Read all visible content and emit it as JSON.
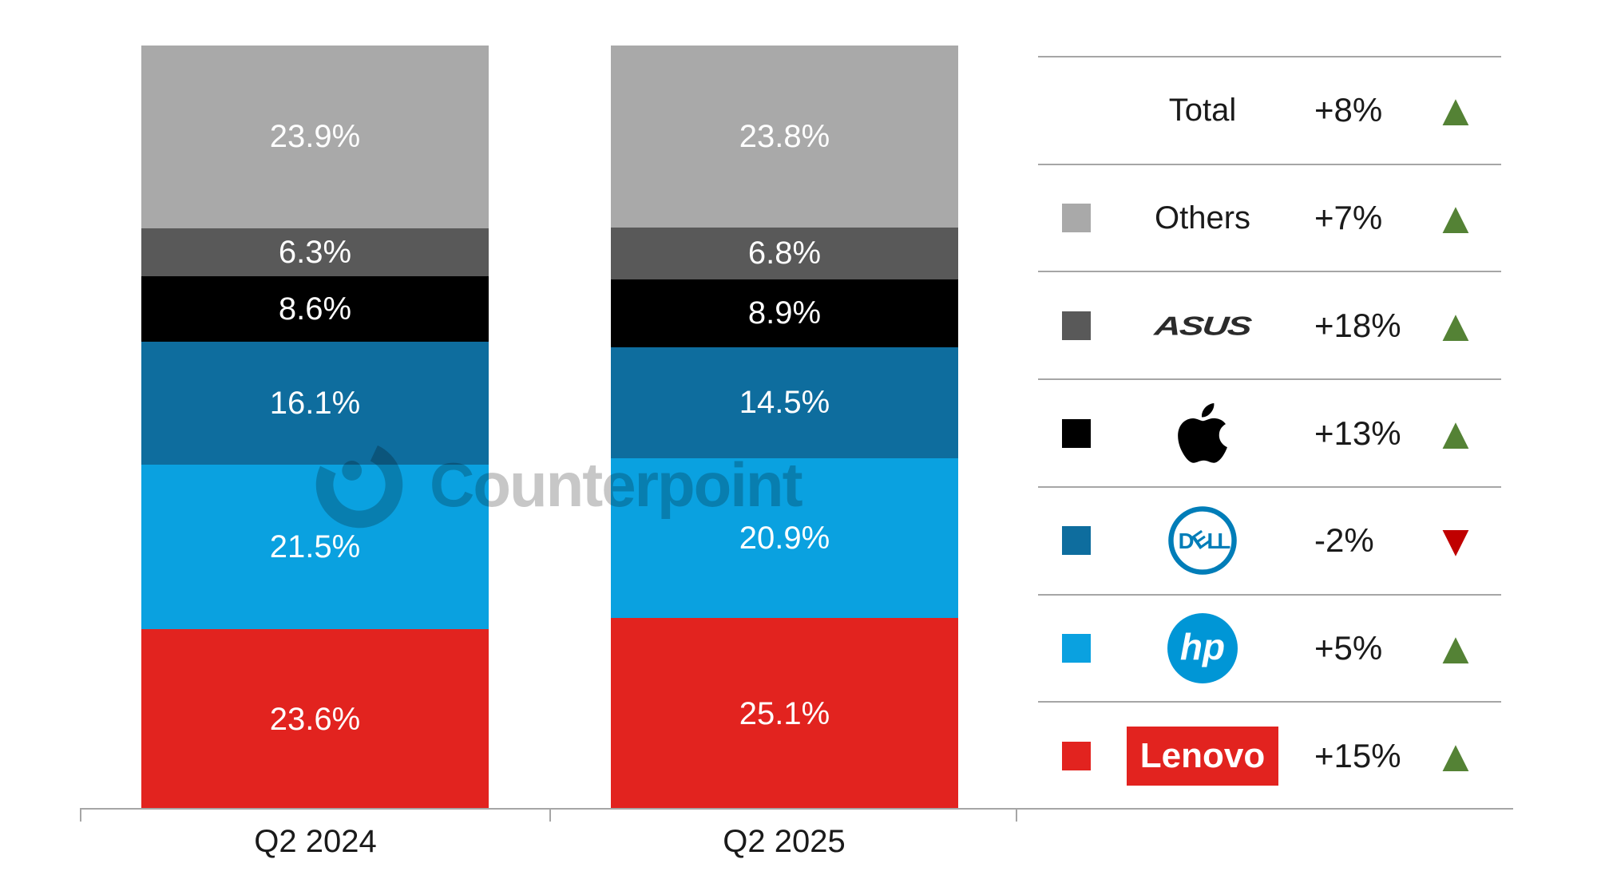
{
  "chart_data": {
    "type": "bar",
    "stacked": true,
    "categories": [
      "Q2 2024",
      "Q2 2025"
    ],
    "series": [
      {
        "name": "Lenovo",
        "color": "#e2231f",
        "values": [
          23.6,
          25.1
        ]
      },
      {
        "name": "HP",
        "color": "#0aa1e0",
        "values": [
          21.5,
          20.9
        ]
      },
      {
        "name": "Dell",
        "color": "#0e6d9e",
        "values": [
          16.1,
          14.5
        ]
      },
      {
        "name": "Apple",
        "color": "#000000",
        "values": [
          8.6,
          8.9
        ]
      },
      {
        "name": "ASUS",
        "color": "#595959",
        "values": [
          6.3,
          6.8
        ]
      },
      {
        "name": "Others",
        "color": "#a9a9a9",
        "values": [
          23.9,
          23.8
        ]
      }
    ],
    "value_suffix": "%",
    "ylim": [
      0,
      100
    ],
    "grid": false,
    "data_label_color": "#ffffff",
    "legend_position": "right"
  },
  "legend": {
    "up_color": "#548235",
    "down_color": "#c00000",
    "up_icon": "up-triangle-icon",
    "down_icon": "down-triangle-icon",
    "rows": [
      {
        "label": "Total",
        "percent": "+8%",
        "direction": "up",
        "swatch": null,
        "logo": null
      },
      {
        "label": "Others",
        "percent": "+7%",
        "direction": "up",
        "swatch": "#a9a9a9",
        "logo": null
      },
      {
        "label": "ASUS",
        "percent": "+18%",
        "direction": "up",
        "swatch": "#595959",
        "logo": "asus-logo"
      },
      {
        "label": "Apple",
        "percent": "+13%",
        "direction": "up",
        "swatch": "#000000",
        "logo": "apple-logo"
      },
      {
        "label": "Dell",
        "percent": "-2%",
        "direction": "down",
        "swatch": "#0e6d9e",
        "logo": "dell-logo"
      },
      {
        "label": "HP",
        "percent": "+5%",
        "direction": "up",
        "swatch": "#0aa1e0",
        "logo": "hp-logo"
      },
      {
        "label": "Lenovo",
        "percent": "+15%",
        "direction": "up",
        "swatch": "#e2231f",
        "logo": "lenovo-logo"
      }
    ]
  },
  "watermark": {
    "text": "Counterpoint",
    "logo_icon": "counterpoint-logo"
  },
  "axis": {
    "line_color": "#a6a6a6"
  }
}
